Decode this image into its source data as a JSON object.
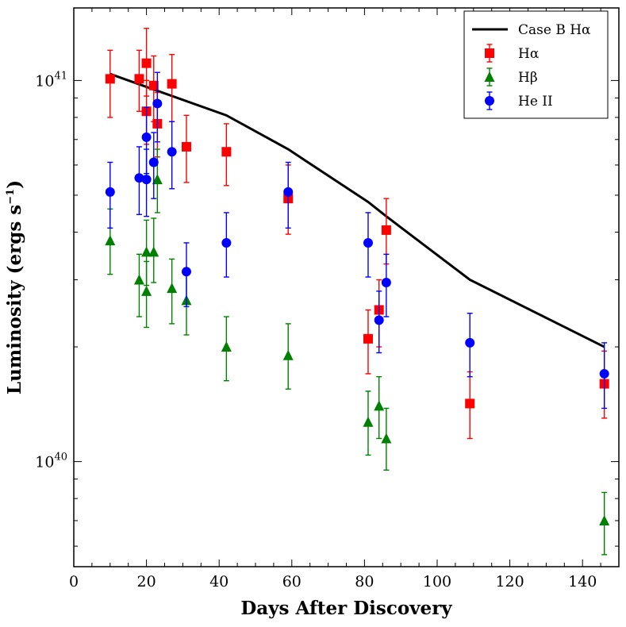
{
  "chart_data": {
    "type": "scatter",
    "title": "",
    "xlabel": "Days After Discovery",
    "ylabel": "Luminosity (ergs s",
    "ylabel_exponent": "−1",
    "ylabel_close": ")",
    "xlim": [
      0,
      150
    ],
    "ylim": [
      5.3e+39,
      1.55e+41
    ],
    "yscale": "log",
    "x_ticks": [
      0,
      20,
      40,
      60,
      80,
      100,
      120,
      140
    ],
    "y_ticks": [
      {
        "value": 1e+40,
        "base": "10",
        "exp": "40"
      },
      {
        "value": 1e+41,
        "base": "10",
        "exp": "41"
      }
    ],
    "legend_position": "top-right",
    "line": {
      "name": "Case B Hα",
      "color": "#000000",
      "x": [
        10,
        42,
        59,
        81,
        86,
        109,
        146
      ],
      "y": [
        1.04e+41,
        8.1e+40,
        6.6e+40,
        4.8e+40,
        4.4e+40,
        3e+40,
        2e+40
      ]
    },
    "series": [
      {
        "name": "Hα",
        "marker": "square",
        "color": "#ff0000",
        "points": [
          {
            "x": 10,
            "y": 1.01e+41,
            "lo": 8e+40,
            "hi": 1.2e+41
          },
          {
            "x": 18,
            "y": 1.01e+41,
            "lo": 8.3e+40,
            "hi": 1.2e+41
          },
          {
            "x": 20,
            "y": 1.11e+41,
            "lo": 9.1e+40,
            "hi": 1.37e+41
          },
          {
            "x": 20,
            "y": 8.3e+40,
            "lo": 6.8e+40,
            "hi": 1e+41
          },
          {
            "x": 22,
            "y": 9.7e+40,
            "lo": 7.8e+40,
            "hi": 1.16e+41
          },
          {
            "x": 23,
            "y": 7.7e+40,
            "lo": 6.3e+40,
            "hi": 9.3e+40
          },
          {
            "x": 27,
            "y": 9.8e+40,
            "lo": 7.8e+40,
            "hi": 1.17e+41
          },
          {
            "x": 31,
            "y": 6.7e+40,
            "lo": 5.4e+40,
            "hi": 8.1e+40
          },
          {
            "x": 42,
            "y": 6.5e+40,
            "lo": 5.3e+40,
            "hi": 7.7e+40
          },
          {
            "x": 59,
            "y": 4.9e+40,
            "lo": 3.95e+40,
            "hi": 6e+40
          },
          {
            "x": 81,
            "y": 2.1e+40,
            "lo": 1.7e+40,
            "hi": 2.5e+40
          },
          {
            "x": 84,
            "y": 2.5e+40,
            "lo": 2e+40,
            "hi": 3e+40
          },
          {
            "x": 86,
            "y": 4.05e+40,
            "lo": 3.3e+40,
            "hi": 4.9e+40
          },
          {
            "x": 109,
            "y": 1.42e+40,
            "lo": 1.15e+40,
            "hi": 1.72e+40
          },
          {
            "x": 146,
            "y": 1.6e+40,
            "lo": 1.3e+40,
            "hi": 1.95e+40
          }
        ]
      },
      {
        "name": "Hβ",
        "marker": "triangle",
        "color": "#008000",
        "points": [
          {
            "x": 10,
            "y": 3.8e+40,
            "lo": 3.1e+40,
            "hi": 4.6e+40
          },
          {
            "x": 18,
            "y": 3e+40,
            "lo": 2.4e+40,
            "hi": 3.5e+40
          },
          {
            "x": 20,
            "y": 3.55e+40,
            "lo": 2.9e+40,
            "hi": 4.3e+40
          },
          {
            "x": 20,
            "y": 2.8e+40,
            "lo": 2.25e+40,
            "hi": 3.35e+40
          },
          {
            "x": 22,
            "y": 3.55e+40,
            "lo": 2.95e+40,
            "hi": 4.35e+40
          },
          {
            "x": 23,
            "y": 5.5e+40,
            "lo": 4.5e+40,
            "hi": 6.6e+40
          },
          {
            "x": 27,
            "y": 2.85e+40,
            "lo": 2.3e+40,
            "hi": 3.4e+40
          },
          {
            "x": 31,
            "y": 2.65e+40,
            "lo": 2.15e+40,
            "hi": 3.2e+40
          },
          {
            "x": 42,
            "y": 2e+40,
            "lo": 1.63e+40,
            "hi": 2.4e+40
          },
          {
            "x": 59,
            "y": 1.9e+40,
            "lo": 1.55e+40,
            "hi": 2.3e+40
          },
          {
            "x": 81,
            "y": 1.27e+40,
            "lo": 1.04e+40,
            "hi": 1.53e+40
          },
          {
            "x": 84,
            "y": 1.4e+40,
            "lo": 1.15e+40,
            "hi": 1.67e+40
          },
          {
            "x": 86,
            "y": 1.15e+40,
            "lo": 9.5e+39,
            "hi": 1.38e+40
          },
          {
            "x": 146,
            "y": 7e+39,
            "lo": 5.7e+39,
            "hi": 8.3e+39
          }
        ]
      },
      {
        "name": "He II",
        "marker": "circle",
        "color": "#0000ff",
        "points": [
          {
            "x": 10,
            "y": 5.1e+40,
            "lo": 4.1e+40,
            "hi": 6.1e+40
          },
          {
            "x": 18,
            "y": 5.55e+40,
            "lo": 4.45e+40,
            "hi": 6.7e+40
          },
          {
            "x": 20,
            "y": 7.1e+40,
            "lo": 5.7e+40,
            "hi": 8.5e+40
          },
          {
            "x": 20,
            "y": 5.5e+40,
            "lo": 4.4e+40,
            "hi": 6.6e+40
          },
          {
            "x": 22,
            "y": 6.1e+40,
            "lo": 4.9e+40,
            "hi": 7.3e+40
          },
          {
            "x": 23,
            "y": 8.7e+40,
            "lo": 6.9e+40,
            "hi": 1.05e+41
          },
          {
            "x": 27,
            "y": 6.5e+40,
            "lo": 5.2e+40,
            "hi": 7.8e+40
          },
          {
            "x": 31,
            "y": 3.15e+40,
            "lo": 2.55e+40,
            "hi": 3.75e+40
          },
          {
            "x": 42,
            "y": 3.75e+40,
            "lo": 3.05e+40,
            "hi": 4.5e+40
          },
          {
            "x": 59,
            "y": 5.1e+40,
            "lo": 4.1e+40,
            "hi": 6.1e+40
          },
          {
            "x": 81,
            "y": 3.75e+40,
            "lo": 3.05e+40,
            "hi": 4.5e+40
          },
          {
            "x": 84,
            "y": 2.35e+40,
            "lo": 1.93e+40,
            "hi": 2.8e+40
          },
          {
            "x": 86,
            "y": 2.95e+40,
            "lo": 2.4e+40,
            "hi": 3.5e+40
          },
          {
            "x": 109,
            "y": 2.05e+40,
            "lo": 1.67e+40,
            "hi": 2.45e+40
          },
          {
            "x": 146,
            "y": 1.7e+40,
            "lo": 1.38e+40,
            "hi": 2.05e+40
          }
        ]
      }
    ]
  }
}
